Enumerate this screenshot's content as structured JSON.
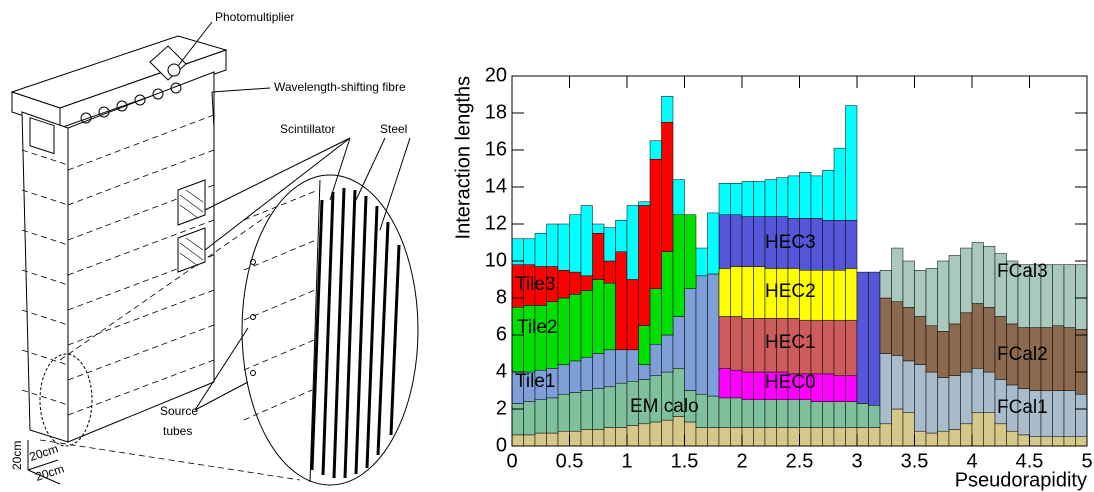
{
  "diagram_labels": {
    "photomultiplier": "Photomultiplier",
    "fibre": "Wavelength-shifting fibre",
    "scintillator": "Scintillator",
    "steel": "Steel",
    "source_1": "Source",
    "source_2": "tubes",
    "scale_1": "20cm",
    "scale_2": "20cm",
    "scale_3": "20cm"
  },
  "chart_data": {
    "type": "stacked-histogram",
    "xlabel": "Pseudorapidity",
    "ylabel": "Interaction lengths",
    "xlim": [
      0,
      5
    ],
    "xticks": [
      0,
      0.5,
      1,
      1.5,
      2,
      2.5,
      3,
      3.5,
      4,
      4.5,
      5
    ],
    "ylim": [
      0,
      20
    ],
    "yticks": [
      0,
      2,
      4,
      6,
      8,
      10,
      12,
      14,
      16,
      18,
      20
    ],
    "bins": [
      0,
      0.1,
      0.2,
      0.3,
      0.4,
      0.5,
      0.6,
      0.7,
      0.8,
      0.9,
      1,
      1.1,
      1.2,
      1.3,
      1.4,
      1.5,
      1.6,
      1.7,
      1.8,
      1.9,
      2,
      2.1,
      2.2,
      2.3,
      2.4,
      2.5,
      2.6,
      2.7,
      2.8,
      2.9,
      3,
      3.1,
      3.2,
      3.3,
      3.4,
      3.5,
      3.6,
      3.7,
      3.8,
      3.9,
      4,
      4.1,
      4.2,
      4.3,
      4.4,
      4.5,
      4.6,
      4.7,
      4.8,
      4.9,
      5
    ],
    "series": [
      {
        "color": "#d6c889",
        "values": [
          0.6,
          0.6,
          0.7,
          0.7,
          0.8,
          0.8,
          0.9,
          0.9,
          1.0,
          1.0,
          1.1,
          1.2,
          1.3,
          1.4,
          1.6,
          1.3,
          1.0,
          1.0,
          1.0,
          1.0,
          1.0,
          1.0,
          1.0,
          1.0,
          1.0,
          1.0,
          1.0,
          1.0,
          1.0,
          1.0,
          1.0,
          1.0,
          1.2,
          2.0,
          1.8,
          0.8,
          0.7,
          0.8,
          0.9,
          1.2,
          1.8,
          1.8,
          1.2,
          0.8,
          0.6,
          0.5,
          0.5,
          0.5,
          0.5,
          0.5
        ]
      },
      {
        "name": "EM calo",
        "color": "#7fc19c",
        "values": [
          1.7,
          1.8,
          1.8,
          1.9,
          2.0,
          2.1,
          2.1,
          2.2,
          2.2,
          2.4,
          2.4,
          2.4,
          2.5,
          2.6,
          2.6,
          1.7,
          1.8,
          1.7,
          1.6,
          1.6,
          1.5,
          1.5,
          1.5,
          1.5,
          1.5,
          1.5,
          1.4,
          1.4,
          1.4,
          1.4,
          1.3,
          1.2,
          null,
          null,
          null,
          null,
          null,
          null,
          null,
          null,
          null,
          null,
          null,
          null,
          null,
          null,
          null,
          null,
          null,
          null
        ]
      },
      {
        "name": "Tile1",
        "color": "#7f9fd8",
        "values": [
          1.7,
          1.6,
          1.6,
          1.6,
          1.6,
          1.7,
          1.8,
          1.9,
          2.0,
          1.8,
          1.7,
          0.8,
          1.7,
          2.0,
          2.8,
          5.5,
          6.4,
          6.6,
          null,
          null,
          null,
          null,
          null,
          null,
          null,
          null,
          null,
          null,
          null,
          null,
          null,
          null,
          null,
          null,
          null,
          null,
          null,
          null,
          null,
          null,
          null,
          null,
          null,
          null,
          null,
          null,
          null,
          null,
          null,
          null
        ]
      },
      {
        "name": "Tile2",
        "color": "#00e000",
        "values": [
          3.5,
          3.6,
          3.5,
          3.6,
          3.6,
          3.6,
          3.6,
          4.0,
          3.6,
          null,
          null,
          2.1,
          3.0,
          4.5,
          5.5,
          4.0,
          null,
          null,
          null,
          null,
          null,
          null,
          null,
          null,
          null,
          null,
          null,
          null,
          null,
          null,
          null,
          null,
          null,
          null,
          null,
          null,
          null,
          null,
          null,
          null,
          null,
          null,
          null,
          null,
          null,
          null,
          null,
          null,
          null,
          null
        ]
      },
      {
        "name": "Tile3",
        "color": "#ff0000",
        "values": [
          2.3,
          2.2,
          2.1,
          1.9,
          1.5,
          1.2,
          0.8,
          2.5,
          1.2,
          5.3,
          3.8,
          6.5,
          7.0,
          7.0,
          null,
          null,
          null,
          null,
          null,
          null,
          null,
          null,
          null,
          null,
          null,
          null,
          null,
          null,
          null,
          null,
          null,
          null,
          null,
          null,
          null,
          null,
          null,
          null,
          null,
          null,
          null,
          null,
          null,
          null,
          null,
          null,
          null,
          null,
          null,
          null
        ]
      },
      {
        "name": "HEC0",
        "color": "#ff00ff",
        "values": [
          null,
          null,
          null,
          null,
          null,
          null,
          null,
          null,
          null,
          null,
          null,
          null,
          null,
          null,
          null,
          null,
          null,
          null,
          1.6,
          1.5,
          1.5,
          1.5,
          1.5,
          1.5,
          1.4,
          1.4,
          1.5,
          1.5,
          1.4,
          1.4,
          null,
          null,
          null,
          null,
          null,
          null,
          null,
          null,
          null,
          null,
          null,
          null,
          null,
          null,
          null,
          null,
          null,
          null,
          null,
          null
        ]
      },
      {
        "name": "HEC1",
        "color": "#cd5c5c",
        "values": [
          null,
          null,
          null,
          null,
          null,
          null,
          null,
          null,
          null,
          null,
          null,
          null,
          null,
          null,
          null,
          null,
          null,
          null,
          2.8,
          2.9,
          2.9,
          2.9,
          2.9,
          2.9,
          3.0,
          2.9,
          2.9,
          2.9,
          3.0,
          3.0,
          null,
          null,
          null,
          null,
          null,
          null,
          null,
          null,
          null,
          null,
          null,
          null,
          null,
          null,
          null,
          null,
          null,
          null,
          null,
          null
        ]
      },
      {
        "name": "HEC2",
        "color": "#ffff00",
        "values": [
          null,
          null,
          null,
          null,
          null,
          null,
          null,
          null,
          null,
          null,
          null,
          null,
          null,
          null,
          null,
          null,
          null,
          null,
          2.6,
          2.7,
          2.8,
          2.8,
          2.7,
          2.7,
          2.7,
          2.7,
          2.7,
          2.7,
          2.7,
          2.8,
          null,
          null,
          null,
          null,
          null,
          null,
          null,
          null,
          null,
          null,
          null,
          null,
          null,
          null,
          null,
          null,
          null,
          null,
          null,
          null
        ]
      },
      {
        "name": "HEC3",
        "color": "#5656d8",
        "values": [
          null,
          null,
          null,
          null,
          null,
          null,
          null,
          null,
          null,
          null,
          null,
          null,
          null,
          null,
          null,
          null,
          null,
          null,
          2.9,
          2.8,
          2.7,
          2.7,
          2.8,
          2.8,
          2.7,
          2.8,
          2.8,
          2.7,
          2.7,
          2.6,
          7.1,
          7.2,
          null,
          null,
          null,
          null,
          null,
          null,
          null,
          null,
          null,
          null,
          null,
          null,
          null,
          null,
          null,
          null,
          null,
          null
        ]
      },
      {
        "name": "FCal1",
        "color": "#a9bccb",
        "values": [
          null,
          null,
          null,
          null,
          null,
          null,
          null,
          null,
          null,
          null,
          null,
          null,
          null,
          null,
          null,
          null,
          null,
          null,
          null,
          null,
          null,
          null,
          null,
          null,
          null,
          null,
          null,
          null,
          null,
          null,
          null,
          null,
          3.8,
          2.9,
          2.8,
          3.6,
          3.3,
          2.9,
          2.9,
          2.8,
          2.4,
          2.2,
          2.4,
          2.5,
          2.5,
          2.5,
          2.5,
          2.5,
          2.5,
          2.3
        ]
      },
      {
        "name": "FCal2",
        "color": "#8c6a4f",
        "values": [
          null,
          null,
          null,
          null,
          null,
          null,
          null,
          null,
          null,
          null,
          null,
          null,
          null,
          null,
          null,
          null,
          null,
          null,
          null,
          null,
          null,
          null,
          null,
          null,
          null,
          null,
          null,
          null,
          null,
          null,
          null,
          null,
          3.0,
          2.9,
          2.9,
          2.6,
          2.5,
          2.5,
          2.8,
          3.2,
          3.5,
          3.5,
          3.4,
          3.3,
          3.3,
          3.4,
          3.4,
          3.5,
          3.4,
          3.5
        ]
      },
      {
        "name": "FCal3",
        "color": "#a8c9bc",
        "values": [
          null,
          null,
          null,
          null,
          null,
          null,
          null,
          null,
          null,
          null,
          null,
          null,
          null,
          null,
          null,
          null,
          null,
          null,
          null,
          null,
          null,
          null,
          null,
          null,
          null,
          null,
          null,
          null,
          null,
          null,
          null,
          null,
          1.5,
          2.9,
          2.5,
          2.5,
          3.1,
          3.8,
          3.7,
          3.5,
          3.3,
          3.3,
          3.4,
          3.4,
          3.4,
          3.4,
          3.4,
          3.3,
          3.4,
          3.5
        ]
      },
      {
        "color": "#00ffff",
        "values": [
          1.4,
          1.4,
          1.8,
          2.3,
          2.5,
          3.1,
          3.8,
          0.5,
          1.8,
          1.7,
          4.0,
          0.2,
          1.0,
          1.4,
          1.9,
          null,
          1.5,
          3.3,
          1.7,
          1.7,
          1.9,
          1.9,
          2.0,
          2.1,
          2.3,
          2.5,
          2.3,
          2.7,
          3.9,
          6.2,
          null,
          null,
          null,
          null,
          null,
          null,
          null,
          null,
          null,
          null,
          null,
          null,
          null,
          null,
          null,
          null,
          null,
          null,
          null,
          null
        ]
      }
    ]
  }
}
